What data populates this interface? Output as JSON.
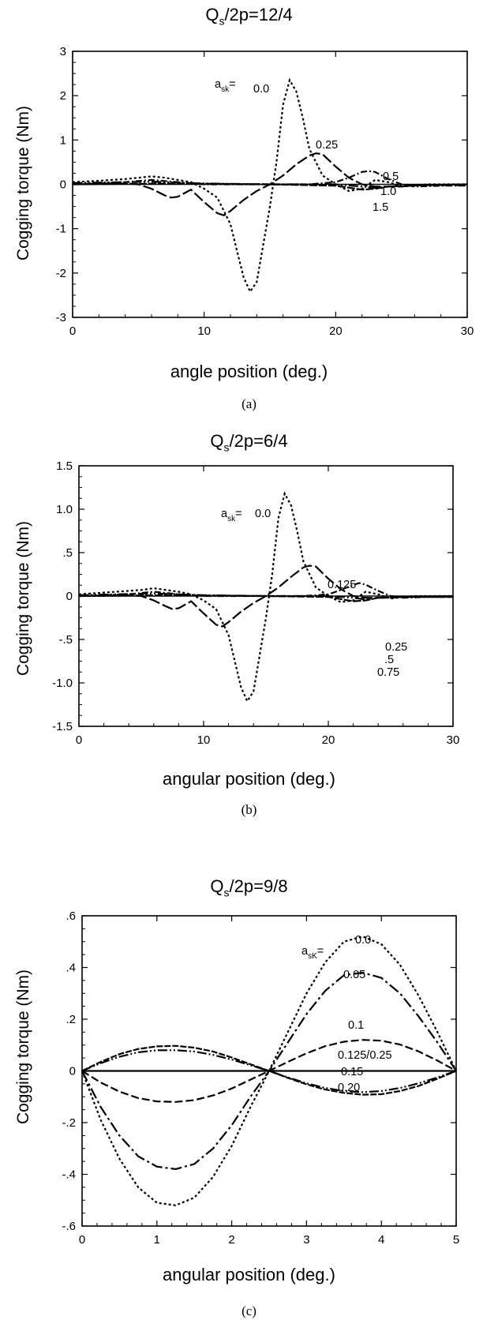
{
  "chart_data": [
    {
      "type": "line",
      "title": "Q_s/2p=12/4",
      "title_main": "Q",
      "title_sub": "s",
      "title_rest": "/2p=12/4",
      "xlabel": "angle position (deg.)",
      "ylabel": "Cogging torque (Nm)",
      "caption": "(a)",
      "xlim": [
        0,
        30
      ],
      "ylim": [
        -3,
        3
      ],
      "xticks": [
        "0",
        "10",
        "20",
        "30"
      ],
      "yticks": [
        "3",
        "2",
        "1",
        "0",
        "-1",
        "-2",
        "-3"
      ],
      "legend_prefix": "a",
      "legend_prefix_sub": "sk",
      "legend_prefix_suffix": "=",
      "series": [
        {
          "name": "0.0",
          "dash": "3,3",
          "x": [
            0,
            2,
            4,
            5,
            6,
            7,
            8,
            9,
            10,
            11,
            12,
            12.5,
            13,
            13.5,
            14,
            15,
            15.5,
            16,
            16.5,
            17,
            17.5,
            18,
            19,
            20,
            21,
            22,
            23,
            24,
            25,
            26,
            27,
            28,
            29,
            30
          ],
          "y": [
            0.05,
            0.08,
            0.12,
            0.15,
            0.18,
            0.15,
            0.1,
            0.05,
            -0.1,
            -0.3,
            -0.9,
            -1.5,
            -2.1,
            -2.42,
            -2.2,
            -0.5,
            0.5,
            1.8,
            2.35,
            2.1,
            1.5,
            0.8,
            0.2,
            0,
            -0.15,
            -0.1,
            0.1,
            0.05,
            -0.05,
            -0.02,
            0,
            0,
            0,
            0
          ]
        },
        {
          "name": "0.25",
          "dash": "14,4",
          "x": [
            0,
            4,
            5,
            6,
            7,
            7.5,
            8,
            9,
            10,
            11,
            11.5,
            12,
            13,
            14,
            15,
            16,
            17,
            18,
            18.5,
            19,
            20,
            21,
            22,
            23,
            24,
            25,
            26,
            27,
            28,
            29,
            30
          ],
          "y": [
            0,
            0.02,
            0,
            -0.1,
            -0.25,
            -0.3,
            -0.28,
            -0.12,
            -0.4,
            -0.65,
            -0.7,
            -0.6,
            -0.35,
            -0.15,
            0,
            0.2,
            0.45,
            0.65,
            0.7,
            0.68,
            0.4,
            0.15,
            0,
            -0.05,
            -0.05,
            -0.05,
            -0.03,
            -0.02,
            -0.02,
            -0.02,
            -0.02
          ]
        },
        {
          "name": "0.5",
          "dash": "8,3,2,3",
          "x": [
            0,
            4,
            6,
            8,
            10,
            12,
            14,
            16,
            18,
            20,
            21,
            22,
            22.5,
            23,
            24,
            25,
            26,
            28,
            30
          ],
          "y": [
            0,
            0.05,
            0.1,
            0.05,
            0,
            0,
            0,
            0,
            0,
            0.05,
            0.15,
            0.28,
            0.3,
            0.28,
            0.12,
            0,
            -0.05,
            -0.03,
            -0.03
          ]
        },
        {
          "name": "1.0",
          "dash": "12,3,2,3,2,3",
          "x": [
            0,
            6,
            10,
            15,
            20,
            22,
            23,
            24,
            26,
            30
          ],
          "y": [
            0.03,
            0.06,
            0.02,
            0,
            0,
            -0.05,
            -0.08,
            -0.05,
            -0.02,
            0
          ]
        },
        {
          "name": "1.5",
          "dash": "10,2",
          "x": [
            0,
            8,
            15,
            20,
            22,
            23,
            24,
            26,
            30
          ],
          "y": [
            0,
            0.02,
            0,
            -0.03,
            -0.12,
            -0.1,
            -0.05,
            -0.02,
            0
          ]
        }
      ]
    },
    {
      "type": "line",
      "title": "Q_s/2p=6/4",
      "title_main": "Q",
      "title_sub": "s",
      "title_rest": "/2p=6/4",
      "xlabel": "angular position (deg.)",
      "ylabel": "Cogging torque (Nm)",
      "caption": "(b)",
      "xlim": [
        0,
        30
      ],
      "ylim": [
        -1.5,
        1.5
      ],
      "xticks": [
        "0",
        "10",
        "20",
        "30"
      ],
      "yticks": [
        "1.5",
        "1.0",
        ".5",
        "0",
        "-.5",
        "-1.0",
        "-1.5"
      ],
      "legend_prefix": "a",
      "legend_prefix_sub": "sk",
      "legend_prefix_suffix": "=",
      "series": [
        {
          "name": "0.0",
          "dash": "3,3",
          "x": [
            0,
            2,
            4,
            5,
            6,
            7,
            8,
            9,
            10,
            11,
            12,
            12.5,
            13,
            13.5,
            14,
            15,
            15.5,
            16,
            16.5,
            17,
            17.5,
            18,
            19,
            20,
            21,
            22,
            23,
            24,
            25,
            26,
            27,
            28,
            29,
            30
          ],
          "y": [
            0.02,
            0.04,
            0.06,
            0.07,
            0.09,
            0.07,
            0.05,
            0.02,
            -0.05,
            -0.15,
            -0.45,
            -0.75,
            -1.05,
            -1.21,
            -1.1,
            -0.25,
            0.25,
            0.9,
            1.18,
            1.05,
            0.75,
            0.4,
            0.1,
            0,
            -0.07,
            -0.05,
            0.05,
            0.02,
            -0.03,
            -0.01,
            0,
            0,
            0,
            0
          ]
        },
        {
          "name": "0.125",
          "dash": "14,4",
          "x": [
            0,
            4,
            5,
            6,
            7,
            7.5,
            8,
            9,
            10,
            11,
            11.5,
            12,
            13,
            14,
            15,
            16,
            17,
            18,
            18.5,
            19,
            20,
            21,
            22,
            23,
            24,
            25,
            26,
            27,
            28,
            29,
            30
          ],
          "y": [
            0,
            0.01,
            0,
            -0.05,
            -0.12,
            -0.15,
            -0.14,
            -0.06,
            -0.2,
            -0.33,
            -0.35,
            -0.3,
            -0.18,
            -0.08,
            0,
            0.1,
            0.22,
            0.33,
            0.35,
            0.34,
            0.2,
            0.08,
            0,
            -0.02,
            -0.02,
            -0.02,
            -0.01,
            -0.01,
            -0.01,
            -0.01,
            -0.01
          ]
        },
        {
          "name": "0.25",
          "dash": "8,3,2,3",
          "x": [
            0,
            4,
            6,
            8,
            10,
            12,
            14,
            16,
            18,
            20,
            21,
            22,
            22.5,
            23,
            24,
            25,
            26,
            28,
            30
          ],
          "y": [
            0,
            0.02,
            0.05,
            0.02,
            0,
            0,
            0,
            0,
            0,
            0.02,
            0.07,
            0.13,
            0.15,
            0.13,
            0.06,
            0,
            -0.02,
            -0.01,
            -0.01
          ]
        },
        {
          "name": ".5",
          "dash": "12,3,2,3,2,3",
          "x": [
            0,
            6,
            10,
            15,
            20,
            22,
            23,
            24,
            26,
            30
          ],
          "y": [
            0.01,
            0.03,
            0.01,
            0,
            0,
            -0.02,
            -0.04,
            -0.02,
            -0.01,
            0
          ]
        },
        {
          "name": "0.75",
          "dash": "10,2",
          "x": [
            0,
            8,
            15,
            20,
            22,
            23,
            24,
            26,
            30
          ],
          "y": [
            0,
            0.01,
            0,
            -0.01,
            -0.06,
            -0.05,
            -0.02,
            -0.01,
            0
          ]
        }
      ]
    },
    {
      "type": "line",
      "title": "Q_s/2p=9/8",
      "title_main": "Q",
      "title_sub": "s",
      "title_rest": "/2p=9/8",
      "xlabel": "angular position (deg.)",
      "ylabel": "Cogging torque (Nm)",
      "caption": "(c)",
      "xlim": [
        0,
        5
      ],
      "ylim": [
        -0.6,
        0.6
      ],
      "xticks": [
        "0",
        "1",
        "2",
        "3",
        "4",
        "5"
      ],
      "yticks": [
        ".6",
        ".4",
        ".2",
        "0",
        "-.2",
        "-.4",
        "-.6"
      ],
      "legend_prefix": "a",
      "legend_prefix_sub": "sK",
      "legend_prefix_suffix": "=",
      "series": [
        {
          "name": "0.0",
          "dash": "3,3",
          "x": [
            0,
            0.25,
            0.5,
            0.75,
            1,
            1.25,
            1.5,
            1.75,
            2,
            2.25,
            2.5,
            2.75,
            3,
            3.25,
            3.5,
            3.75,
            4,
            4.25,
            4.5,
            4.75,
            5
          ],
          "y": [
            0,
            -0.19,
            -0.34,
            -0.45,
            -0.51,
            -0.52,
            -0.49,
            -0.41,
            -0.29,
            -0.14,
            0,
            0.15,
            0.3,
            0.42,
            0.5,
            0.52,
            0.49,
            0.41,
            0.29,
            0.15,
            0
          ]
        },
        {
          "name": "0.05",
          "dash": "14,4,3,4",
          "x": [
            0,
            0.25,
            0.5,
            0.75,
            1,
            1.25,
            1.5,
            1.75,
            2,
            2.25,
            2.5,
            2.75,
            3,
            3.25,
            3.5,
            3.75,
            4,
            4.25,
            4.5,
            4.75,
            5
          ],
          "y": [
            0,
            -0.14,
            -0.25,
            -0.33,
            -0.37,
            -0.38,
            -0.36,
            -0.3,
            -0.21,
            -0.1,
            0,
            0.11,
            0.22,
            0.31,
            0.37,
            0.38,
            0.36,
            0.3,
            0.21,
            0.11,
            0
          ]
        },
        {
          "name": "0.1",
          "dash": "10,4",
          "x": [
            0,
            0.25,
            0.5,
            0.75,
            1,
            1.25,
            1.5,
            1.75,
            2,
            2.25,
            2.5,
            2.75,
            3,
            3.25,
            3.5,
            3.75,
            4,
            4.25,
            4.5,
            4.75,
            5
          ],
          "y": [
            0,
            -0.045,
            -0.08,
            -0.105,
            -0.118,
            -0.12,
            -0.113,
            -0.095,
            -0.068,
            -0.034,
            0,
            0.035,
            0.068,
            0.096,
            0.113,
            0.12,
            0.117,
            0.102,
            0.075,
            0.04,
            0
          ]
        },
        {
          "name": "0.125/0.25",
          "dash": "",
          "x": [
            0,
            5
          ],
          "y": [
            0,
            0
          ]
        },
        {
          "name": "0.15",
          "dash": "12,3,2,3,2,3",
          "x": [
            0,
            0.25,
            0.5,
            0.75,
            1,
            1.25,
            1.5,
            1.75,
            2,
            2.25,
            2.5,
            2.75,
            3,
            3.25,
            3.5,
            3.75,
            4,
            4.25,
            4.5,
            4.75,
            5
          ],
          "y": [
            0,
            0.03,
            0.055,
            0.072,
            0.08,
            0.08,
            0.075,
            0.062,
            0.044,
            0.022,
            0,
            -0.025,
            -0.048,
            -0.066,
            -0.078,
            -0.082,
            -0.078,
            -0.066,
            -0.048,
            -0.025,
            0
          ]
        },
        {
          "name": "0.20",
          "dash": "8,2",
          "x": [
            0,
            0.25,
            0.5,
            0.75,
            1,
            1.25,
            1.5,
            1.75,
            2,
            2.25,
            2.5,
            2.75,
            3,
            3.25,
            3.5,
            3.75,
            4,
            4.25,
            4.5,
            4.75,
            5
          ],
          "y": [
            0,
            0.035,
            0.065,
            0.085,
            0.095,
            0.097,
            0.09,
            0.075,
            0.052,
            0.026,
            0,
            -0.027,
            -0.052,
            -0.072,
            -0.085,
            -0.092,
            -0.09,
            -0.078,
            -0.058,
            -0.03,
            0
          ]
        }
      ]
    }
  ]
}
